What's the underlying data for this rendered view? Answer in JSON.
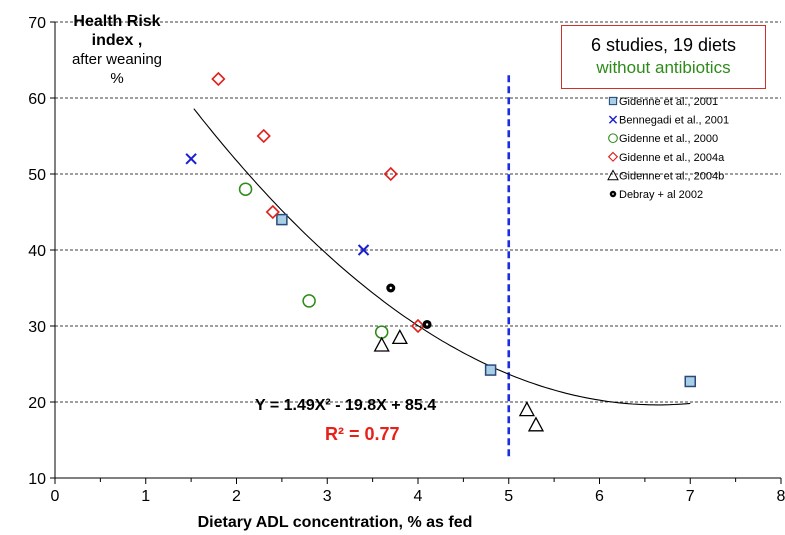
{
  "chart_data": {
    "type": "scatter",
    "ylabel_lines": [
      "Health Risk",
      "index ,",
      "after weaning",
      "%"
    ],
    "xlabel": "Dietary ADL concentration,  % as fed",
    "xlim": [
      0,
      8
    ],
    "ylim": [
      10,
      70
    ],
    "x_ticks": [
      "0",
      "1",
      "2",
      "3",
      "4",
      "5",
      "6",
      "7",
      "8"
    ],
    "y_ticks": [
      "10",
      "20",
      "30",
      "40",
      "50",
      "60",
      "70"
    ],
    "grid": "horizontal dashed",
    "legend_position": "right",
    "annotation": {
      "line1": "6  studies, 19 diets",
      "line2": "without antibiotics"
    },
    "equation": "Y = 1.49X² - 19.8X + 85.4",
    "r_squared": "R² = 0.77",
    "fit": {
      "a": 1.49,
      "b": -19.8,
      "c": 85.4,
      "x_range": [
        1.53,
        7.0
      ],
      "color": "#000000"
    },
    "threshold_x": 5,
    "threshold_color": "#1a2ee0",
    "series": [
      {
        "name": "Gidenne et al., 2001",
        "marker": "square",
        "color": "#2a4a7a",
        "fill": "#a9cfe6",
        "points": [
          [
            2.5,
            44
          ],
          [
            4.8,
            24.2
          ],
          [
            7.0,
            22.7
          ]
        ]
      },
      {
        "name": "Bennegadi et al., 2001",
        "marker": "x",
        "color": "#1a1fd0",
        "fill": "none",
        "points": [
          [
            1.5,
            52
          ],
          [
            3.4,
            40
          ]
        ]
      },
      {
        "name": "Gidenne et al., 2000",
        "marker": "circle",
        "color": "#2e8b1a",
        "fill": "none",
        "points": [
          [
            2.1,
            48
          ],
          [
            2.8,
            33.3
          ],
          [
            3.6,
            29.2
          ]
        ]
      },
      {
        "name": "Gidenne et al., 2004a",
        "marker": "diamond",
        "color": "#e0201a",
        "fill": "none",
        "points": [
          [
            1.8,
            62.5
          ],
          [
            2.3,
            55
          ],
          [
            2.4,
            45
          ],
          [
            3.7,
            50
          ],
          [
            4.0,
            30
          ]
        ]
      },
      {
        "name": "Gidenne et al., 2004b",
        "marker": "triangle",
        "color": "#000000",
        "fill": "none",
        "points": [
          [
            3.6,
            27.5
          ],
          [
            3.8,
            28.5
          ],
          [
            5.2,
            19
          ],
          [
            5.3,
            17
          ]
        ]
      },
      {
        "name": "Debray + al 2002",
        "marker": "dot",
        "color": "#000000",
        "fill": "#000000",
        "points": [
          [
            3.7,
            35
          ],
          [
            4.1,
            30.2
          ]
        ]
      }
    ]
  }
}
